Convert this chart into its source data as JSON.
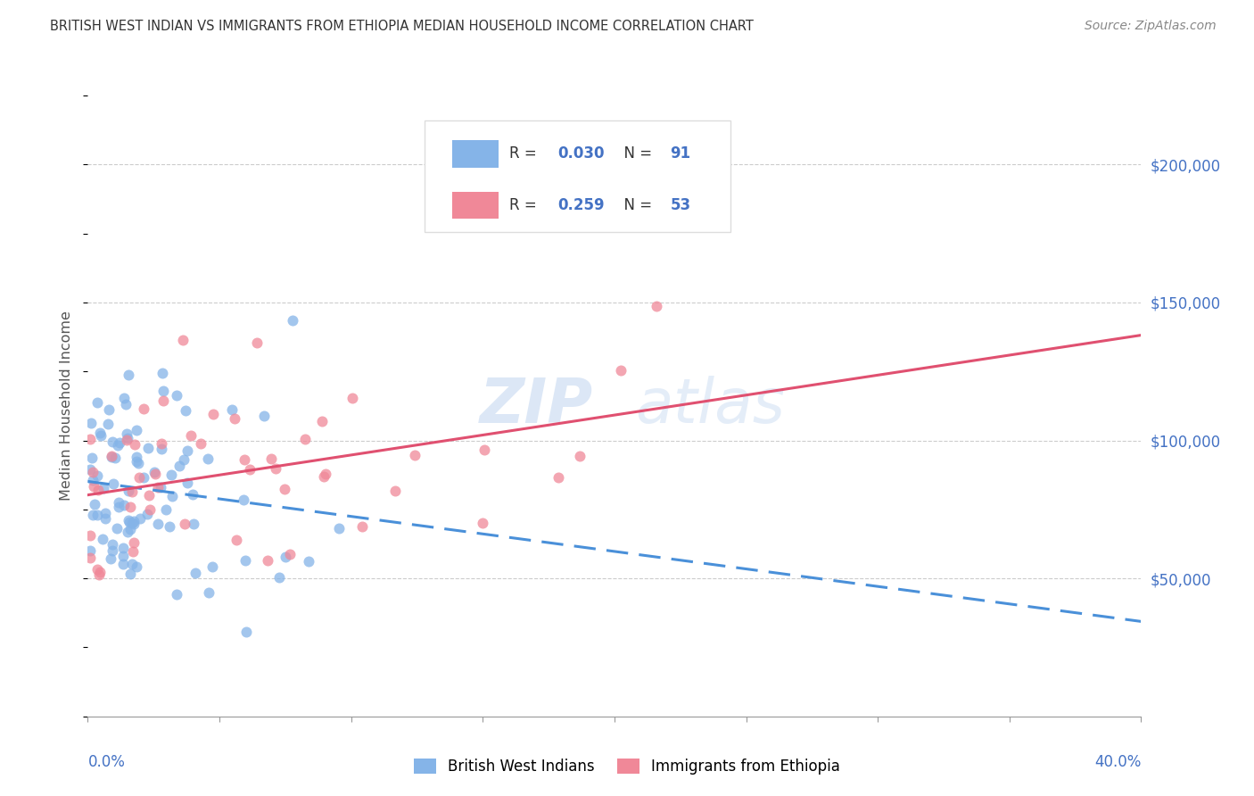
{
  "title": "BRITISH WEST INDIAN VS IMMIGRANTS FROM ETHIOPIA MEDIAN HOUSEHOLD INCOME CORRELATION CHART",
  "source": "Source: ZipAtlas.com",
  "ylabel": "Median Household Income",
  "ytick_labels": [
    "$50,000",
    "$100,000",
    "$150,000",
    "$200,000"
  ],
  "ytick_values": [
    50000,
    100000,
    150000,
    200000
  ],
  "r_blue": 0.03,
  "r_pink": 0.259,
  "n_blue": 91,
  "n_pink": 53,
  "xmin": 0.0,
  "xmax": 0.4,
  "ymin": 0,
  "ymax": 225000,
  "blue_color": "#85b4e8",
  "pink_color": "#f08898",
  "trend_blue_color": "#4a90d9",
  "trend_pink_color": "#e05070",
  "background_color": "#ffffff",
  "grid_color": "#cccccc",
  "axis_label_color": "#4472c4",
  "legend_r_color": "#4472c4",
  "title_color": "#333333",
  "source_color": "#888888",
  "watermark_color": "#c5d8f0",
  "legend_label_blue": "British West Indians",
  "legend_label_pink": "Immigrants from Ethiopia"
}
